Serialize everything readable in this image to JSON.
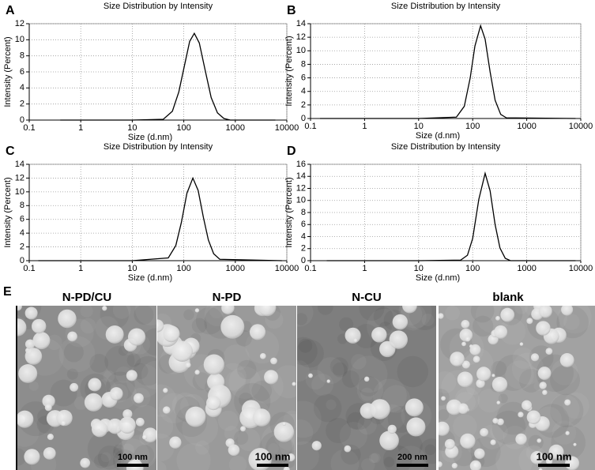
{
  "chart_data": [
    {
      "type": "line",
      "panel_label": "A",
      "title": "Size Distribution by Intensity",
      "xlabel": "Size (d.nm)",
      "ylabel": "Intensity (Percent)",
      "x_scale": "log",
      "xlim": [
        0.1,
        10000
      ],
      "xticks": [
        0.1,
        1,
        10,
        100,
        1000,
        10000
      ],
      "ylim": [
        0,
        12
      ],
      "yticks": [
        0,
        2,
        4,
        6,
        8,
        10,
        12
      ],
      "grid": true,
      "color": "#000000",
      "x": [
        0.4,
        10,
        40,
        60,
        80,
        100,
        130,
        160,
        200,
        260,
        340,
        450,
        600,
        800,
        6000
      ],
      "values": [
        0,
        0,
        0.1,
        1.1,
        3.5,
        6.4,
        9.8,
        10.8,
        9.6,
        6.2,
        2.8,
        0.9,
        0.2,
        0,
        0
      ]
    },
    {
      "type": "line",
      "panel_label": "B",
      "title": "Size Distribution by Intensity",
      "xlabel": "Size (d.nm)",
      "ylabel": "Intensity (Percent)",
      "x_scale": "log",
      "xlim": [
        0.1,
        10000
      ],
      "xticks": [
        0.1,
        1,
        10,
        100,
        1000,
        10000
      ],
      "ylim": [
        0,
        14
      ],
      "yticks": [
        0,
        2,
        4,
        6,
        8,
        10,
        12,
        14
      ],
      "grid": true,
      "color": "#000000",
      "x": [
        0.15,
        10,
        50,
        70,
        90,
        110,
        140,
        170,
        210,
        260,
        330,
        420,
        8000
      ],
      "values": [
        0,
        0,
        0.2,
        1.8,
        6.0,
        10.7,
        13.7,
        11.7,
        6.9,
        2.7,
        0.6,
        0.1,
        0
      ]
    },
    {
      "type": "line",
      "panel_label": "C",
      "title": "Size Distribution by Intensity",
      "xlabel": "Size (d.nm)",
      "ylabel": "Intensity (Percent)",
      "x_scale": "log",
      "xlim": [
        0.1,
        10000
      ],
      "xticks": [
        0.1,
        1,
        10,
        100,
        1000,
        10000
      ],
      "ylim": [
        0,
        14
      ],
      "yticks": [
        0,
        2,
        4,
        6,
        8,
        10,
        12,
        14
      ],
      "grid": true,
      "color": "#000000",
      "x": [
        0.15,
        10,
        50,
        70,
        90,
        115,
        150,
        190,
        240,
        300,
        380,
        500,
        8000
      ],
      "values": [
        0,
        0,
        0.4,
        2.2,
        5.6,
        9.8,
        12,
        10.2,
        6.3,
        3.0,
        1.0,
        0.2,
        0
      ]
    },
    {
      "type": "line",
      "panel_label": "D",
      "title": "Size Distribution by Intensity",
      "xlabel": "Size (d.nm)",
      "ylabel": "Intensity (Percent)",
      "x_scale": "log",
      "xlim": [
        0.1,
        10000
      ],
      "xticks": [
        0.1,
        1,
        10,
        100,
        1000,
        10000
      ],
      "ylim": [
        0,
        16
      ],
      "yticks": [
        0,
        2,
        4,
        6,
        8,
        10,
        12,
        14,
        16
      ],
      "grid": true,
      "color": "#000000",
      "x": [
        0.2,
        10,
        60,
        80,
        100,
        130,
        170,
        210,
        260,
        320,
        400,
        500,
        8000
      ],
      "values": [
        0,
        0,
        0.1,
        0.9,
        3.7,
        10.2,
        14.5,
        11.6,
        6.0,
        2.1,
        0.4,
        0,
        0
      ]
    }
  ],
  "panel_e": {
    "panel_label": "E",
    "images": [
      {
        "title": "N-PD/CU",
        "scale_bar": "100 nm"
      },
      {
        "title": "N-PD",
        "scale_bar": "100 nm"
      },
      {
        "title": "N-CU",
        "scale_bar": "200 nm"
      },
      {
        "title": "blank",
        "scale_bar": "100 nm"
      }
    ]
  }
}
